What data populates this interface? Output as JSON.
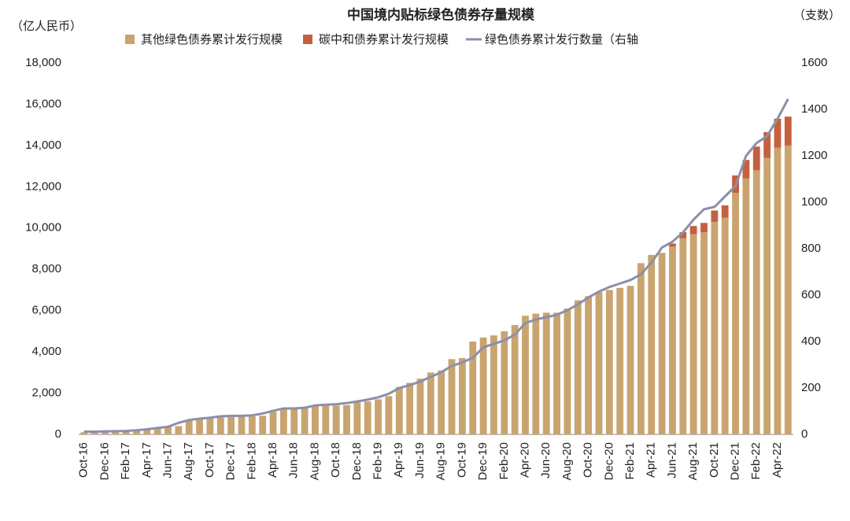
{
  "chart_data": {
    "type": "bar",
    "title": "中国境内贴标绿色债券存量规模",
    "ylabel": "（亿人民币）",
    "y2label": "（支数）",
    "categories": [
      "Oct-16",
      null,
      "Dec-16",
      null,
      "Feb-17",
      null,
      "Apr-17",
      null,
      "Jun-17",
      null,
      "Aug-17",
      null,
      "Oct-17",
      null,
      "Dec-17",
      null,
      "Feb-18",
      null,
      "Apr-18",
      null,
      "Jun-18",
      null,
      "Aug-18",
      null,
      "Oct-18",
      null,
      "Dec-18",
      null,
      "Feb-19",
      null,
      "Apr-19",
      null,
      "Jun-19",
      null,
      "Aug-19",
      null,
      "Oct-19",
      null,
      "Dec-19",
      null,
      "Feb-20",
      null,
      "Apr-20",
      null,
      "Jun-20",
      null,
      "Aug-20",
      null,
      "Oct-20",
      null,
      "Dec-20",
      null,
      "Feb-21",
      null,
      "Apr-21",
      null,
      "Jun-21",
      null,
      "Aug-21",
      null,
      "Oct-21",
      null,
      "Dec-21",
      null,
      "Feb-22",
      null,
      "Apr-22",
      null
    ],
    "series": [
      {
        "name": "其他绿色债券累计发行规模",
        "type": "bar",
        "color": "#c9a46f",
        "values": [
          100,
          120,
          150,
          170,
          200,
          230,
          260,
          300,
          380,
          400,
          650,
          750,
          800,
          820,
          850,
          870,
          880,
          900,
          1100,
          1250,
          1250,
          1260,
          1380,
          1400,
          1400,
          1420,
          1550,
          1600,
          1700,
          1850,
          2300,
          2500,
          2700,
          3000,
          3100,
          3650,
          3700,
          4500,
          4700,
          4800,
          5000,
          5300,
          5750,
          5850,
          5900,
          5900,
          6100,
          6500,
          6700,
          6900,
          7000,
          7100,
          7200,
          8300,
          8700,
          8800,
          9100,
          9500,
          9700,
          9800,
          10300,
          10500,
          11700,
          12400,
          12800,
          13400,
          13900,
          14000
        ]
      },
      {
        "name": "碳中和债券累计发行规模",
        "type": "bar",
        "color": "#c5603f",
        "values": [
          0,
          0,
          0,
          0,
          0,
          0,
          0,
          0,
          0,
          0,
          0,
          0,
          0,
          0,
          0,
          0,
          0,
          0,
          0,
          0,
          0,
          0,
          0,
          0,
          0,
          0,
          0,
          0,
          0,
          0,
          0,
          0,
          0,
          0,
          0,
          0,
          0,
          0,
          0,
          0,
          0,
          0,
          0,
          0,
          0,
          0,
          0,
          0,
          0,
          0,
          0,
          0,
          0,
          0,
          0,
          0,
          150,
          300,
          400,
          450,
          550,
          600,
          850,
          900,
          1150,
          1250,
          1400,
          1400
        ]
      },
      {
        "name": "绿色债券累计发行数量（右轴",
        "type": "line",
        "axis": "y2",
        "color": "#8b90a8",
        "values": [
          12,
          12,
          13,
          14,
          15,
          18,
          22,
          28,
          33,
          50,
          62,
          68,
          72,
          78,
          80,
          80,
          82,
          90,
          102,
          112,
          112,
          115,
          125,
          128,
          130,
          135,
          142,
          150,
          160,
          175,
          200,
          212,
          228,
          248,
          268,
          295,
          310,
          330,
          375,
          390,
          405,
          430,
          480,
          495,
          505,
          515,
          535,
          560,
          590,
          615,
          635,
          650,
          665,
          690,
          740,
          805,
          830,
          870,
          925,
          970,
          980,
          1025,
          1070,
          1200,
          1255,
          1285,
          1360,
          1445
        ]
      }
    ],
    "ylim": [
      0,
      18000
    ],
    "yticks": [
      0,
      {
        "value": 2000,
        "label": "2,000"
      },
      {
        "value": 4000,
        "label": "4,000"
      },
      {
        "value": 6000,
        "label": "6,000"
      },
      {
        "value": 8000,
        "label": "8,000"
      },
      {
        "value": 10000,
        "label": "10,000"
      },
      {
        "value": 12000,
        "label": "12,000"
      },
      {
        "value": 14000,
        "label": "14,000"
      },
      {
        "value": 16000,
        "label": "16,000"
      },
      {
        "value": 18000,
        "label": "18,000"
      }
    ],
    "y2lim": [
      0,
      1600
    ],
    "y2ticks": [
      0,
      200,
      400,
      600,
      800,
      1000,
      1200,
      1400,
      1600
    ],
    "grid": false
  }
}
